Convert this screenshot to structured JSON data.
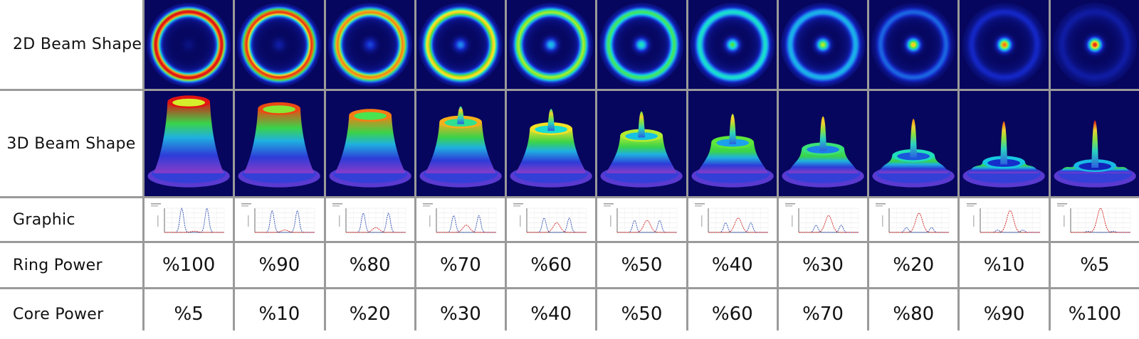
{
  "row_labels": {
    "shape_2d": "2D Beam Shape",
    "shape_3d": "3D Beam Shape",
    "graphic": "Graphic",
    "ring_power": "Ring Power",
    "core_power": "Core Power"
  },
  "columns": [
    {
      "ring": "%100",
      "core": "%5",
      "ring_level": 1.0,
      "core_level": 0.05
    },
    {
      "ring": "%90",
      "core": "%10",
      "ring_level": 0.9,
      "core_level": 0.1
    },
    {
      "ring": "%80",
      "core": "%20",
      "ring_level": 0.8,
      "core_level": 0.2
    },
    {
      "ring": "%70",
      "core": "%30",
      "ring_level": 0.7,
      "core_level": 0.3
    },
    {
      "ring": "%60",
      "core": "%40",
      "ring_level": 0.6,
      "core_level": 0.4
    },
    {
      "ring": "%50",
      "core": "%50",
      "ring_level": 0.5,
      "core_level": 0.5
    },
    {
      "ring": "%40",
      "core": "%60",
      "ring_level": 0.4,
      "core_level": 0.6
    },
    {
      "ring": "%30",
      "core": "%70",
      "ring_level": 0.3,
      "core_level": 0.7
    },
    {
      "ring": "%20",
      "core": "%80",
      "ring_level": 0.2,
      "core_level": 0.8
    },
    {
      "ring": "%10",
      "core": "%90",
      "ring_level": 0.1,
      "core_level": 0.9
    },
    {
      "ring": "%5",
      "core": "%100",
      "ring_level": 0.05,
      "core_level": 1.0
    }
  ],
  "colors": {
    "beam_background": "#06065e",
    "grid_line": "#9a9a9a",
    "profile_ring": "#2f4fb0",
    "profile_core": "#d02020"
  }
}
